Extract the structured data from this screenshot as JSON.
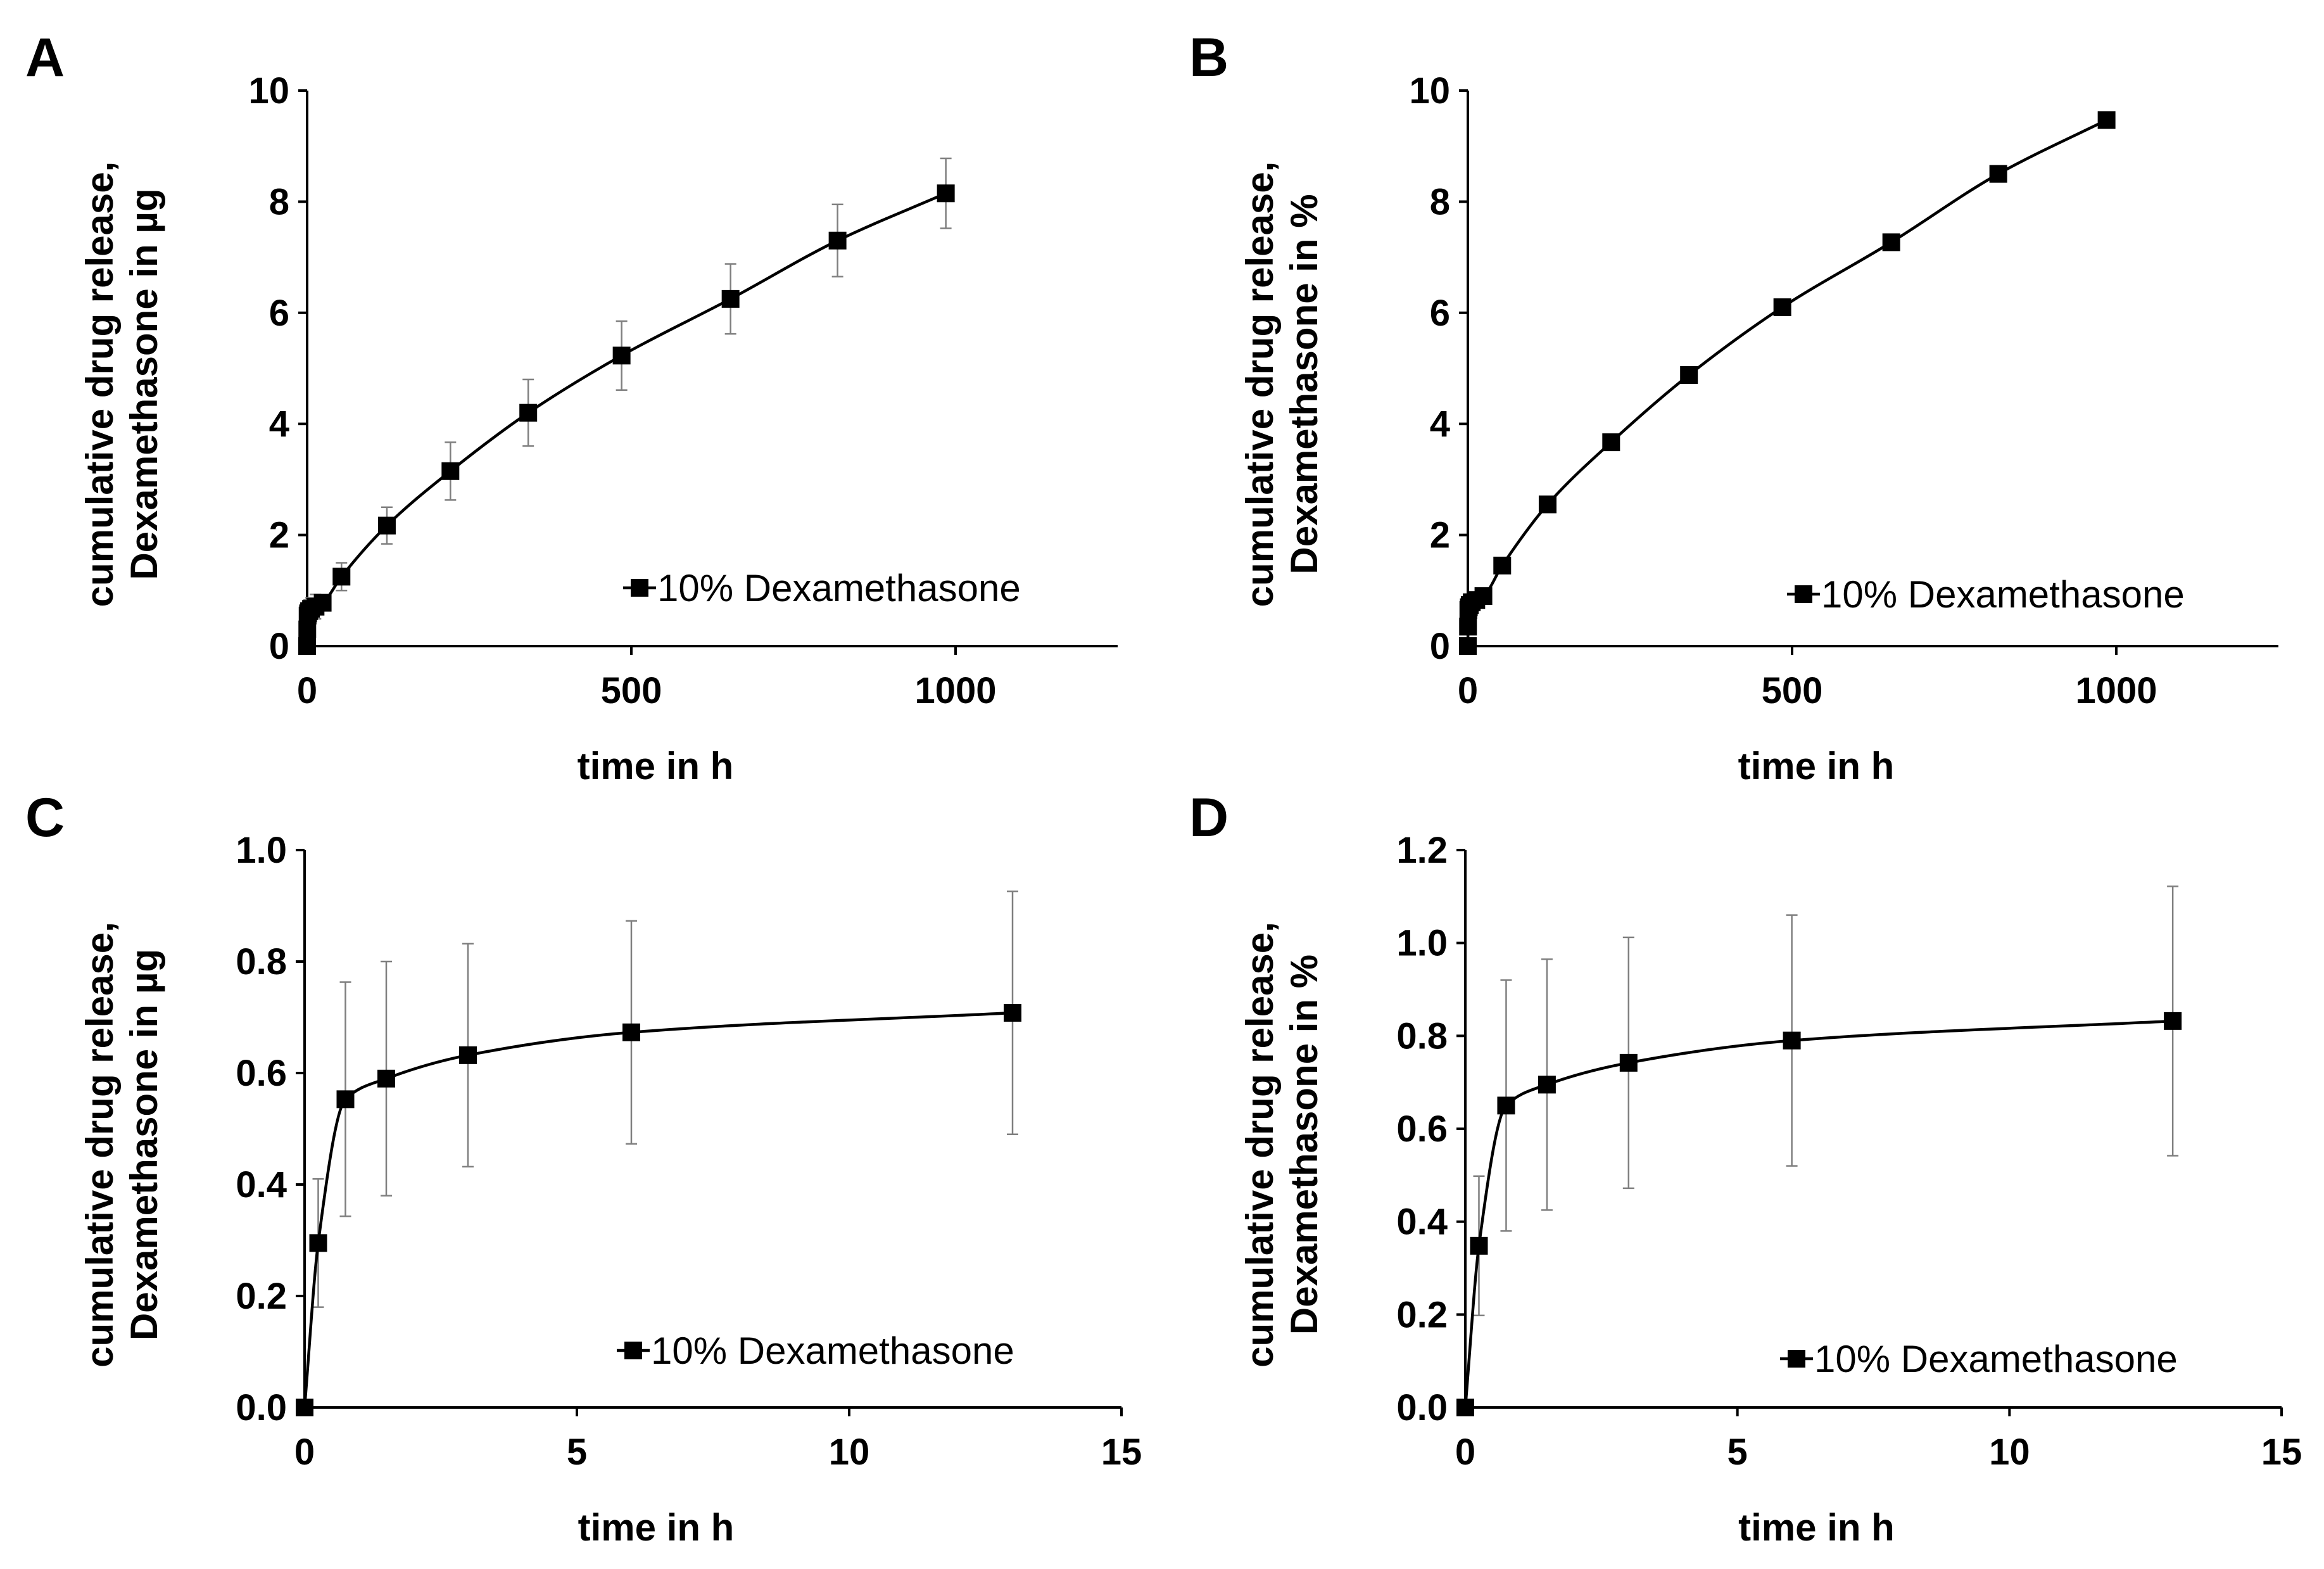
{
  "colors": {
    "series": "#000000",
    "error_bar": "#7f7f7f",
    "axis": "#000000"
  },
  "chart_data": [
    {
      "panel": "A",
      "type": "line",
      "title": "",
      "xlabel": "time in h",
      "ylabel": [
        "cumulative drug release,",
        "Dexamethasone in µg"
      ],
      "xlim": [
        0,
        1250
      ],
      "ylim": [
        0,
        10
      ],
      "xticks": [
        0,
        500,
        1000
      ],
      "yticks": [
        0,
        2,
        4,
        6,
        8,
        10
      ],
      "xtick_labels": [
        "0",
        "500",
        "1000"
      ],
      "ytick_labels": [
        "0",
        "2",
        "4",
        "6",
        "8",
        "10"
      ],
      "legend": "top-left",
      "legend_position": "bottom-right",
      "series": [
        {
          "name": "10% Dexamethasone",
          "marker": "square",
          "x": [
            0,
            0.25,
            0.75,
            1.5,
            3,
            6,
            13,
            24,
            53,
            123,
            221,
            341,
            485,
            653,
            818,
            985
          ],
          "y": [
            0,
            0.3,
            0.55,
            0.59,
            0.63,
            0.67,
            0.71,
            0.78,
            1.25,
            2.17,
            3.15,
            4.2,
            5.23,
            6.25,
            7.3,
            8.15
          ],
          "err": [
            0,
            0.12,
            0.21,
            0.21,
            0.2,
            0.2,
            0.22,
            0.12,
            0.25,
            0.33,
            0.52,
            0.6,
            0.62,
            0.63,
            0.65,
            0.63
          ]
        }
      ]
    },
    {
      "panel": "B",
      "type": "line",
      "title": "",
      "xlabel": "time in h",
      "ylabel": [
        "cumulative drug release,",
        "Dexamethasone in %"
      ],
      "xlim": [
        0,
        1250
      ],
      "ylim": [
        0,
        10
      ],
      "xticks": [
        0,
        500,
        1000
      ],
      "yticks": [
        0,
        2,
        4,
        6,
        8,
        10
      ],
      "xtick_labels": [
        "0",
        "500",
        "1000"
      ],
      "ytick_labels": [
        "0",
        "2",
        "4",
        "6",
        "8",
        "10"
      ],
      "legend_position": "bottom-right",
      "series": [
        {
          "name": "10% Dexamethasone",
          "marker": "square",
          "x": [
            0,
            0.25,
            0.75,
            1.5,
            3,
            6,
            13,
            24,
            53,
            123,
            221,
            341,
            485,
            653,
            818,
            985
          ],
          "y": [
            0,
            0.35,
            0.65,
            0.7,
            0.74,
            0.79,
            0.83,
            0.9,
            1.45,
            2.55,
            3.67,
            4.88,
            6.1,
            7.27,
            8.5,
            9.47
          ],
          "err": []
        }
      ]
    },
    {
      "panel": "C",
      "type": "line",
      "title": "",
      "xlabel": "time in h",
      "ylabel": [
        "cumulative drug release,",
        "Dexamethasone in µg"
      ],
      "xlim": [
        0,
        15
      ],
      "ylim": [
        0,
        1.0
      ],
      "xticks": [
        0,
        5,
        10,
        15
      ],
      "yticks": [
        0,
        0.2,
        0.4,
        0.6,
        0.8,
        1.0
      ],
      "xtick_labels": [
        "0",
        "5",
        "10",
        "15"
      ],
      "ytick_labels": [
        "0.0",
        "0.2",
        "0.4",
        "0.6",
        "0.8",
        "1.0"
      ],
      "legend_position": "bottom-right",
      "series": [
        {
          "name": "10% Dexamethasone",
          "marker": "square",
          "x": [
            0,
            0.25,
            0.75,
            1.5,
            3,
            6,
            13
          ],
          "y": [
            0,
            0.295,
            0.553,
            0.59,
            0.632,
            0.673,
            0.708
          ],
          "err": [
            0,
            0.115,
            0.21,
            0.21,
            0.2,
            0.2,
            0.218
          ]
        }
      ]
    },
    {
      "panel": "D",
      "type": "line",
      "title": "",
      "xlabel": "time in h",
      "ylabel": [
        "cumulative drug release,",
        "Dexamethasone in %"
      ],
      "xlim": [
        0,
        15
      ],
      "ylim": [
        0,
        1.2
      ],
      "xticks": [
        0,
        5,
        10,
        15
      ],
      "yticks": [
        0,
        0.2,
        0.4,
        0.6,
        0.8,
        1.0,
        1.2
      ],
      "xtick_labels": [
        "0",
        "5",
        "10",
        "15"
      ],
      "ytick_labels": [
        "0.0",
        "0.2",
        "0.4",
        "0.6",
        "0.8",
        "1.0",
        "1.2"
      ],
      "legend_position": "bottom-right",
      "series": [
        {
          "name": "10% Dexamethasone",
          "marker": "square",
          "x": [
            0,
            0.25,
            0.75,
            1.5,
            3,
            6,
            13
          ],
          "y": [
            0,
            0.348,
            0.65,
            0.695,
            0.742,
            0.79,
            0.832
          ],
          "err": [
            0,
            0.15,
            0.27,
            0.27,
            0.27,
            0.27,
            0.29
          ]
        }
      ]
    }
  ]
}
